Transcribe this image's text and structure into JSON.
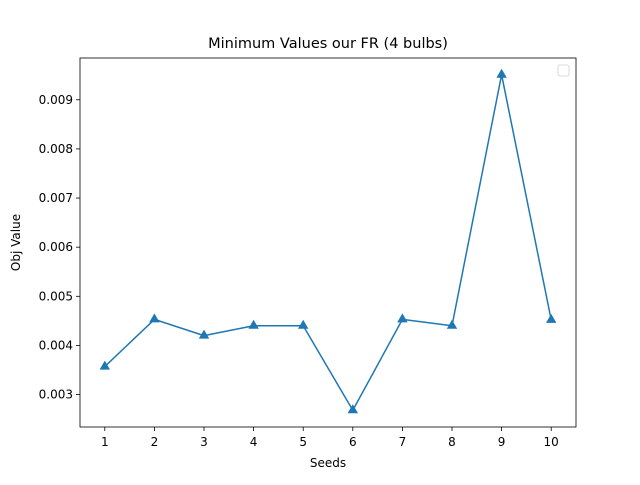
{
  "chart_data": {
    "type": "line",
    "title": "Minimum Values our FR (4 bulbs)",
    "xlabel": "Seeds",
    "ylabel": "Obj Value",
    "x": [
      1,
      2,
      3,
      4,
      5,
      6,
      7,
      8,
      9,
      10
    ],
    "x_tick_labels": [
      "1",
      "2",
      "3",
      "4",
      "5",
      "6",
      "7",
      "8",
      "9",
      "10"
    ],
    "series": [
      {
        "values": [
          0.00357,
          0.00453,
          0.0042,
          0.0044,
          0.0044,
          0.00268,
          0.00453,
          0.0044,
          0.00951,
          0.00452
        ],
        "color": "#1f77b4",
        "marker": "triangle-up"
      }
    ],
    "xlim": [
      0.5,
      10.5
    ],
    "ylim": [
      0.00234,
      0.00985
    ],
    "y_ticks": [
      0.003,
      0.004,
      0.005,
      0.006,
      0.007,
      0.008,
      0.009
    ],
    "y_tick_labels": [
      "0.003",
      "0.004",
      "0.005",
      "0.006",
      "0.007",
      "0.008",
      "0.009"
    ],
    "grid": false,
    "legend": {
      "placement": "top-right",
      "entries": []
    }
  }
}
